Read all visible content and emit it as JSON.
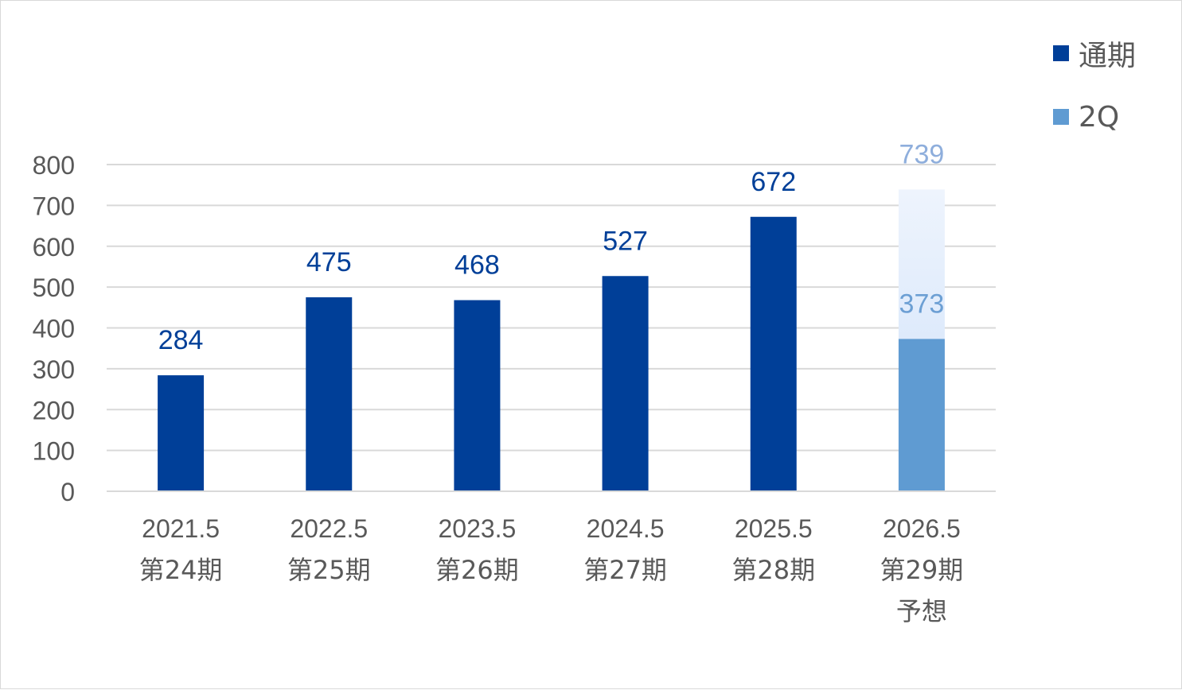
{
  "chart_data": {
    "type": "bar",
    "categories": [
      [
        "2021.5",
        "第24期"
      ],
      [
        "2022.5",
        "第25期"
      ],
      [
        "2023.5",
        "第26期"
      ],
      [
        "2024.5",
        "第27期"
      ],
      [
        "2025.5",
        "第28期"
      ],
      [
        "2026.5",
        "第29期",
        "予想"
      ]
    ],
    "series": [
      {
        "name": "通期",
        "values": [
          284,
          475,
          468,
          527,
          672,
          739
        ],
        "color": "#003f98"
      },
      {
        "name": "2Q",
        "values": [
          null,
          null,
          null,
          null,
          null,
          373
        ],
        "color": "#5f9bd2"
      }
    ],
    "forecast_index": 5,
    "forecast_label_color": "#8eaedc",
    "ylim": [
      0,
      800
    ],
    "yticks": [
      0,
      100,
      200,
      300,
      400,
      500,
      600,
      700,
      800
    ],
    "grid": true,
    "legend": "top-right"
  }
}
